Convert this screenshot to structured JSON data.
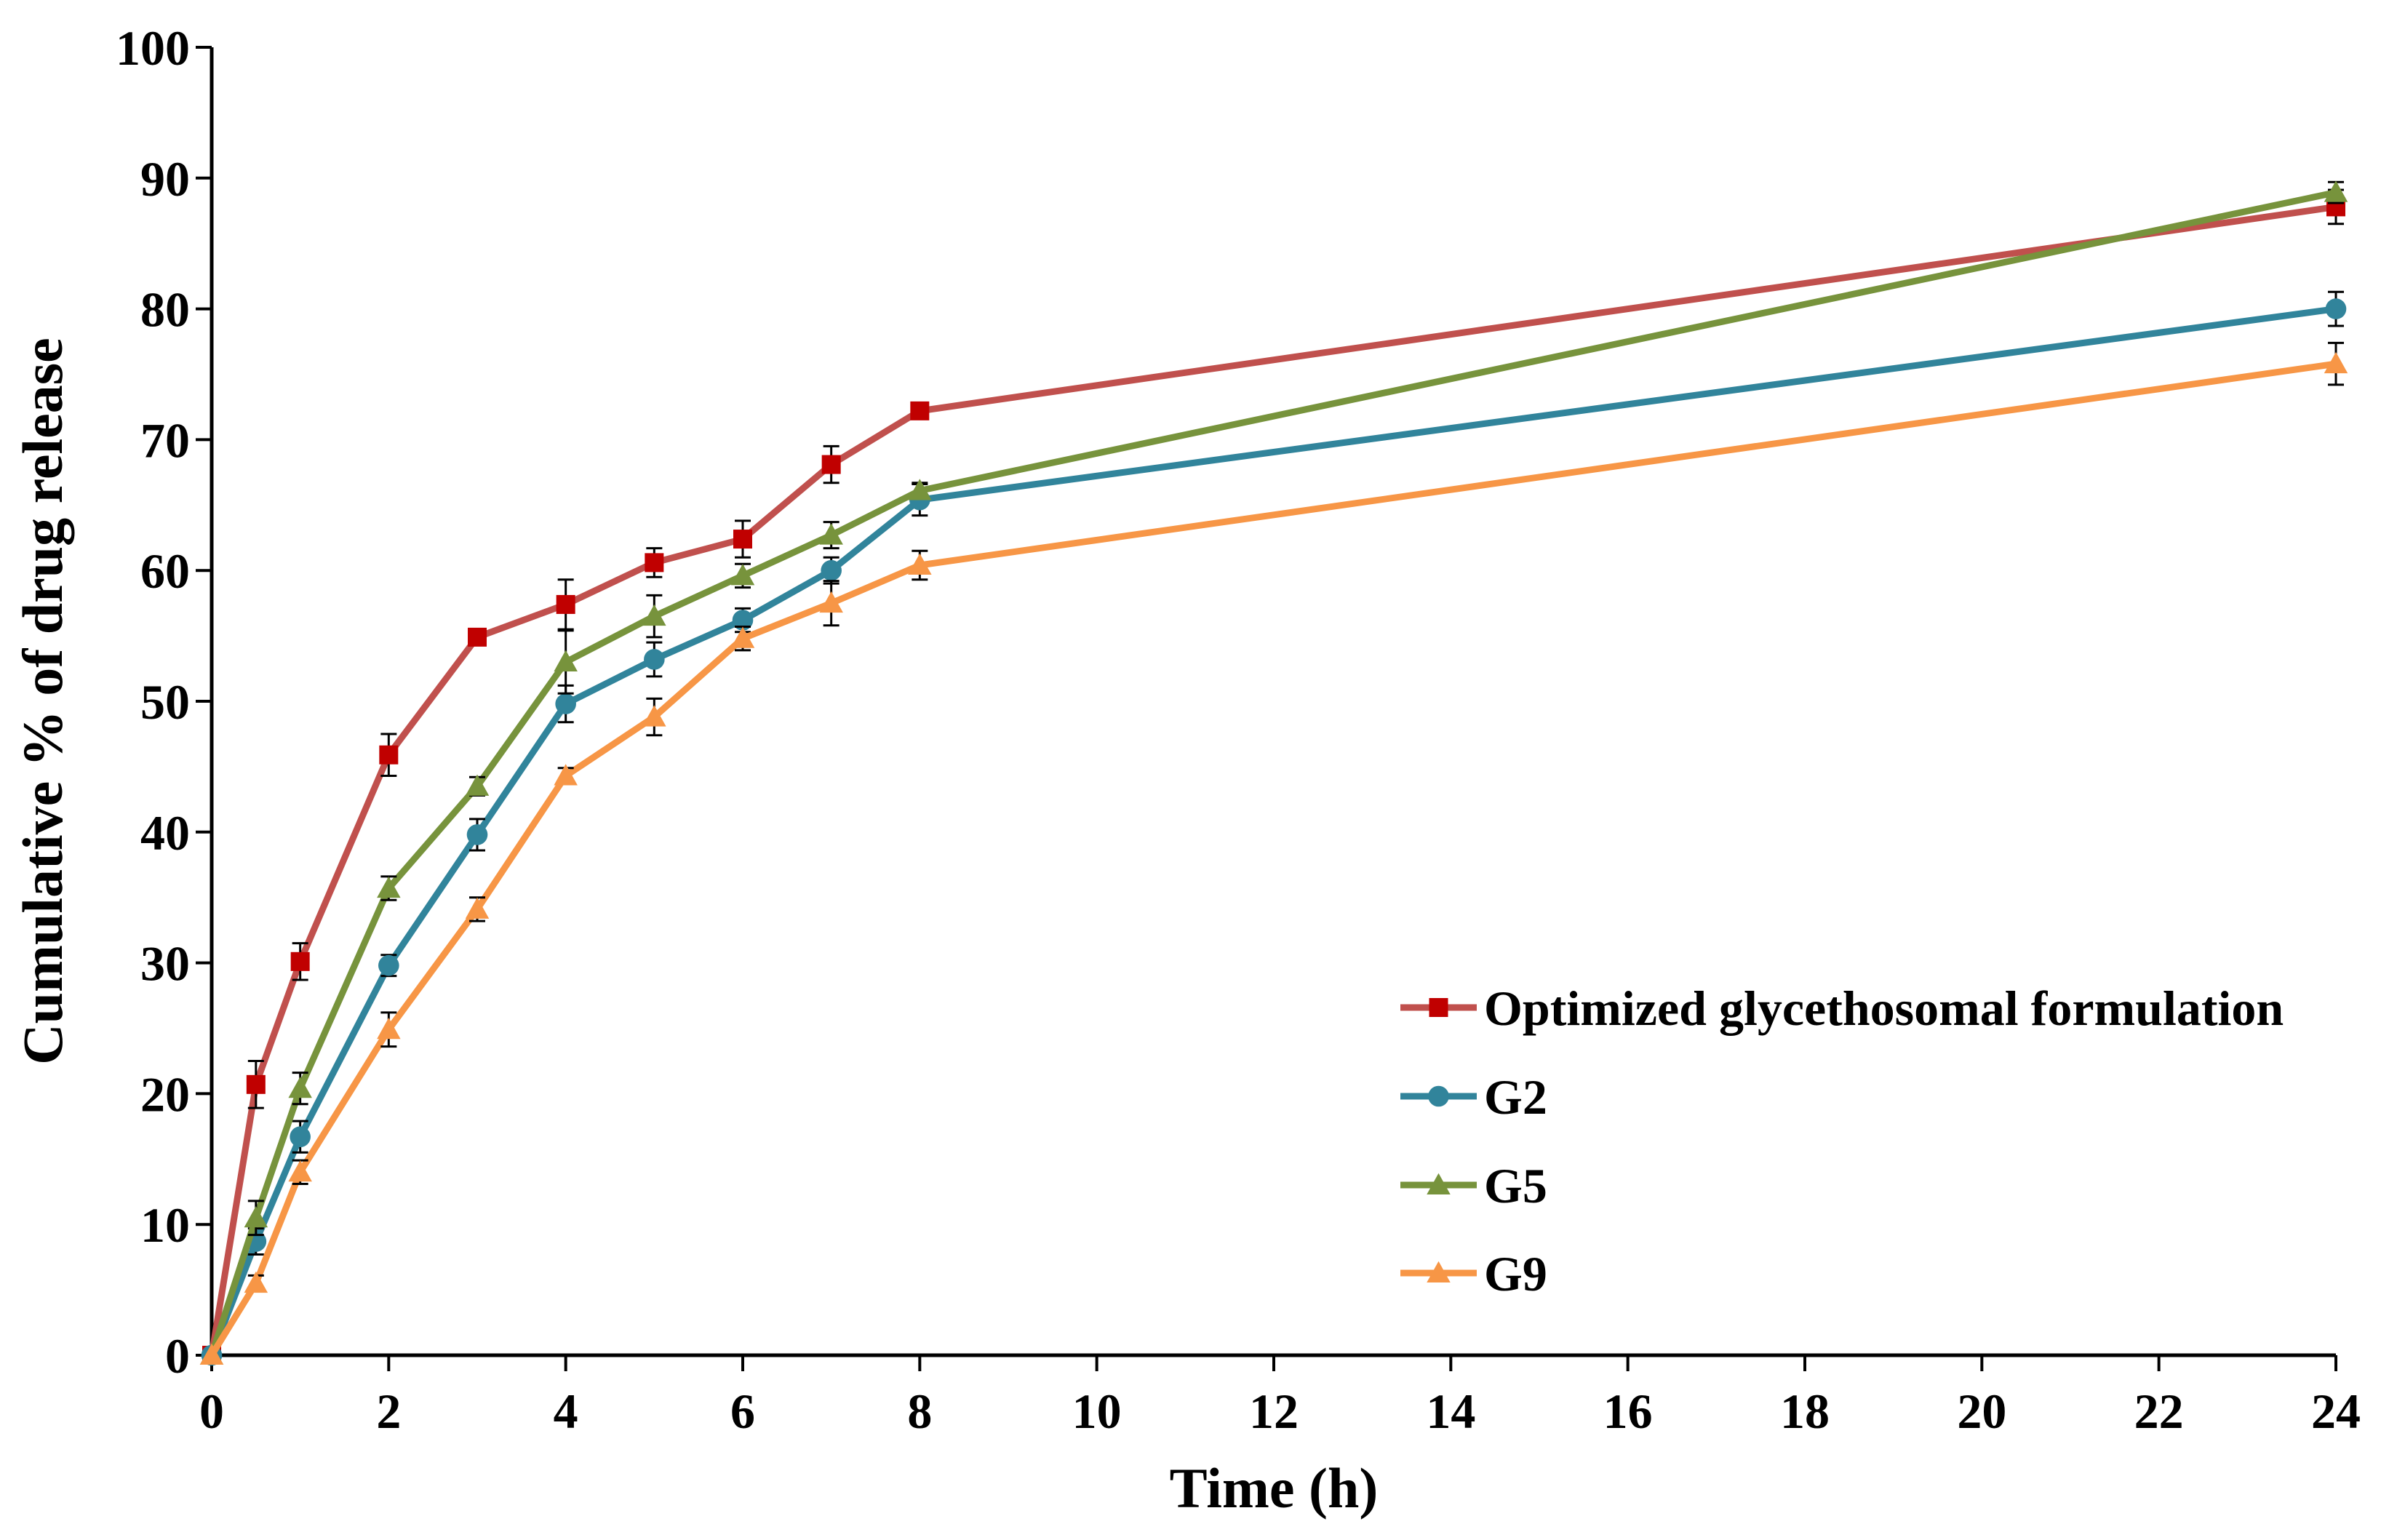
{
  "chart_data": {
    "type": "line",
    "title": "",
    "xlabel": "Time (h)",
    "ylabel": "Cumulative % of drug release",
    "xlim": [
      0,
      24
    ],
    "ylim": [
      0,
      100
    ],
    "x_ticks": [
      0,
      2,
      4,
      6,
      8,
      10,
      12,
      14,
      16,
      18,
      20,
      22,
      24
    ],
    "y_ticks": [
      0,
      10,
      20,
      30,
      40,
      50,
      60,
      70,
      80,
      90,
      100
    ],
    "grid": false,
    "legend_position": "bottom-right",
    "x": [
      0,
      0.5,
      1,
      2,
      3,
      4,
      5,
      6,
      7,
      8,
      24
    ],
    "series": [
      {
        "name": "Optimized glycethosomal formulation",
        "line_color": "#C0504D",
        "marker_color": "#C00000",
        "marker": "square",
        "values": [
          0,
          20.7,
          30.1,
          45.9,
          54.9,
          57.4,
          60.6,
          62.4,
          68.1,
          72.2,
          87.8
        ],
        "errors": [
          0,
          1.8,
          1.4,
          1.6,
          0.6,
          1.9,
          1.1,
          1.4,
          1.4,
          0.6,
          1.3
        ]
      },
      {
        "name": "G2",
        "line_color": "#31849B",
        "marker_color": "#31849B",
        "marker": "circle",
        "values": [
          0,
          8.7,
          16.7,
          29.8,
          39.8,
          49.8,
          53.2,
          56.2,
          60.0,
          65.4,
          80.0
        ],
        "errors": [
          0,
          1.0,
          1.2,
          0.8,
          1.2,
          1.4,
          1.3,
          0.9,
          1.0,
          1.2,
          1.3
        ]
      },
      {
        "name": "G5",
        "line_color": "#77933C",
        "marker_color": "#77933C",
        "marker": "triangle",
        "values": [
          0,
          10.5,
          20.4,
          35.7,
          43.5,
          53.0,
          56.5,
          59.6,
          62.7,
          66.1,
          88.9
        ],
        "errors": [
          0,
          1.3,
          1.2,
          0.9,
          0.7,
          2.4,
          1.6,
          0.9,
          1.0,
          0.6,
          0.8
        ]
      },
      {
        "name": "G9",
        "line_color": "#F79646",
        "marker_color": "#F79646",
        "marker": "triangle",
        "values": [
          0,
          5.5,
          14.0,
          24.9,
          34.1,
          44.3,
          48.8,
          54.8,
          57.5,
          60.4,
          75.8
        ],
        "errors": [
          0,
          0.6,
          0.9,
          1.3,
          0.9,
          0.6,
          1.4,
          0.9,
          1.7,
          1.1,
          1.6
        ]
      }
    ]
  }
}
